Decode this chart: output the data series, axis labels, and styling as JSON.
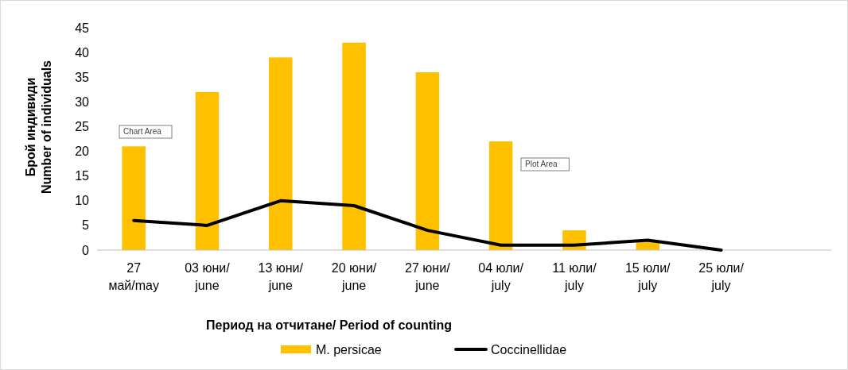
{
  "chart_data": {
    "type": "bar",
    "xlabel": "Период на отчитане/ Period of counting",
    "ylabel": "Брой индивиди\nNumber of individuals",
    "categories": [
      "27 май/may",
      "03 юни/ june",
      "13 юни/ june",
      "20 юни/ june",
      "27 юни/ june",
      "04 юли/ july",
      "11 юли/ july",
      "15 юли/ july",
      "25 юли/ july",
      null
    ],
    "series": [
      {
        "name": "M. persicae",
        "color": "#ffc000",
        "values": [
          21,
          32,
          39,
          42,
          36,
          22,
          4,
          2,
          null,
          null
        ]
      },
      {
        "name": "Coccinellidae",
        "type": "line",
        "color": "#000000",
        "values": [
          6,
          5,
          10,
          9,
          4,
          1,
          1,
          2,
          0,
          null
        ]
      }
    ],
    "ylim": [
      0,
      45
    ],
    "yticks": [
      0,
      5,
      10,
      15,
      20,
      25,
      30,
      35,
      40,
      45
    ],
    "grid": false,
    "legend": "bottom",
    "marker": "none",
    "line_style": "solid",
    "annotations": [
      "Chart Area",
      "Plot Area"
    ]
  }
}
